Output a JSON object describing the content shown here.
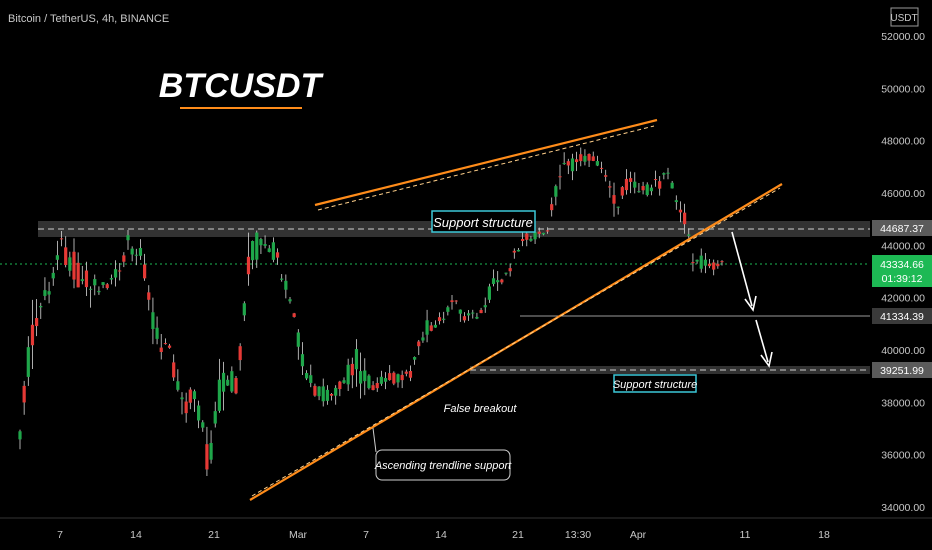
{
  "header": {
    "symbol_info": "Bitcoin / TetherUS, 4h, BINANCE",
    "currency": "USDT"
  },
  "title": "BTCUSDT",
  "price_axis": {
    "ticks": [
      "52000.00",
      "50000.00",
      "48000.00",
      "46000.00",
      "44000.00",
      "42000.00",
      "40000.00",
      "38000.00",
      "36000.00",
      "34000.00"
    ]
  },
  "time_axis": {
    "ticks": [
      "7",
      "14",
      "21",
      "Mar",
      "7",
      "14",
      "21",
      "13:30",
      "Apr",
      "11",
      "18"
    ]
  },
  "price_labels": {
    "resistance_level": "44687.37",
    "current_price": "43334.66",
    "countdown": "01:39:12",
    "target_1": "41334.39",
    "target_2": "39251.99"
  },
  "annotations": {
    "support_top": "Support structure",
    "support_bottom": "Support structure",
    "false_breakout": "False breakout",
    "trendline": "Ascending trendline support"
  },
  "colors": {
    "background": "#000000",
    "bull": "#26a69a",
    "bull_candle": "#1fa64a",
    "bear_candle": "#e53935",
    "trendline": "#ff8c1a",
    "current_price": "#1db954",
    "zone_border": "#3cc8d8",
    "axis_text": "#c8c8c8"
  },
  "chart_data": {
    "type": "candlestick",
    "interval": "4h",
    "ylim": [
      34000,
      52000
    ],
    "series": [
      {
        "name": "BTCUSDT",
        "candles": [
          {
            "x": "Feb 03",
            "o": 37300,
            "h": 38000,
            "l": 36200,
            "c": 36900
          },
          {
            "x": "Feb 04",
            "o": 36900,
            "h": 41600,
            "l": 36700,
            "c": 41200
          },
          {
            "x": "Feb 06",
            "o": 41200,
            "h": 42700,
            "l": 40800,
            "c": 42100
          },
          {
            "x": "Feb 07",
            "o": 42100,
            "h": 45000,
            "l": 41900,
            "c": 43800
          },
          {
            "x": "Feb 08",
            "o": 43800,
            "h": 45400,
            "l": 42200,
            "c": 43200
          },
          {
            "x": "Feb 10",
            "o": 43200,
            "h": 45900,
            "l": 42000,
            "c": 42400
          },
          {
            "x": "Feb 12",
            "o": 42400,
            "h": 43100,
            "l": 41800,
            "c": 42300
          },
          {
            "x": "Feb 14",
            "o": 42300,
            "h": 43200,
            "l": 41600,
            "c": 42700
          },
          {
            "x": "Feb 15",
            "o": 42700,
            "h": 44800,
            "l": 42500,
            "c": 44200
          },
          {
            "x": "Feb 16",
            "o": 44200,
            "h": 44500,
            "l": 42900,
            "c": 43600
          },
          {
            "x": "Feb 17",
            "o": 43600,
            "h": 43800,
            "l": 40000,
            "c": 40600
          },
          {
            "x": "Feb 19",
            "o": 40600,
            "h": 40900,
            "l": 39600,
            "c": 40100
          },
          {
            "x": "Feb 21",
            "o": 40100,
            "h": 40300,
            "l": 36900,
            "c": 37800
          },
          {
            "x": "Feb 22",
            "o": 37800,
            "h": 39200,
            "l": 36600,
            "c": 38200
          },
          {
            "x": "Feb 24",
            "o": 38200,
            "h": 38400,
            "l": 34300,
            "c": 35600
          },
          {
            "x": "Feb 25",
            "o": 35600,
            "h": 39700,
            "l": 35300,
            "c": 39000
          },
          {
            "x": "Feb 27",
            "o": 39000,
            "h": 39900,
            "l": 37800,
            "c": 38700
          },
          {
            "x": "Feb 28",
            "o": 38700,
            "h": 43800,
            "l": 38100,
            "c": 43200
          },
          {
            "x": "Mar 01",
            "o": 43200,
            "h": 45400,
            "l": 42700,
            "c": 44400
          },
          {
            "x": "Mar 02",
            "o": 44400,
            "h": 45100,
            "l": 42900,
            "c": 43600
          },
          {
            "x": "Mar 03",
            "o": 43600,
            "h": 43900,
            "l": 41600,
            "c": 42200
          },
          {
            "x": "Mar 04",
            "o": 42200,
            "h": 42400,
            "l": 38600,
            "c": 39300
          },
          {
            "x": "Mar 06",
            "o": 39300,
            "h": 39600,
            "l": 37700,
            "c": 38500
          },
          {
            "x": "Mar 07",
            "o": 38500,
            "h": 39300,
            "l": 37300,
            "c": 38200
          },
          {
            "x": "Mar 08",
            "o": 38200,
            "h": 39300,
            "l": 37900,
            "c": 38900
          },
          {
            "x": "Mar 10",
            "o": 38900,
            "h": 42400,
            "l": 38100,
            "c": 39400
          },
          {
            "x": "Mar 11",
            "o": 39400,
            "h": 39700,
            "l": 38300,
            "c": 38700
          },
          {
            "x": "Mar 13",
            "o": 38700,
            "h": 39300,
            "l": 37900,
            "c": 38800
          },
          {
            "x": "Mar 14",
            "o": 38800,
            "h": 39500,
            "l": 37600,
            "c": 39000
          },
          {
            "x": "Mar 15",
            "o": 39000,
            "h": 39400,
            "l": 38400,
            "c": 39100
          },
          {
            "x": "Mar 16",
            "o": 39100,
            "h": 41200,
            "l": 38900,
            "c": 40900
          },
          {
            "x": "Mar 17",
            "o": 40900,
            "h": 41600,
            "l": 40400,
            "c": 41000
          },
          {
            "x": "Mar 18",
            "o": 41000,
            "h": 42300,
            "l": 40800,
            "c": 41900
          },
          {
            "x": "Mar 20",
            "o": 41900,
            "h": 42200,
            "l": 40700,
            "c": 41200
          },
          {
            "x": "Mar 21",
            "o": 41200,
            "h": 41600,
            "l": 40900,
            "c": 41300
          },
          {
            "x": "Mar 22",
            "o": 41300,
            "h": 43200,
            "l": 41000,
            "c": 42500
          },
          {
            "x": "Mar 23",
            "o": 42500,
            "h": 43000,
            "l": 42100,
            "c": 42800
          },
          {
            "x": "Mar 24",
            "o": 42800,
            "h": 44300,
            "l": 42500,
            "c": 44000
          },
          {
            "x": "Mar 25",
            "o": 44000,
            "h": 44800,
            "l": 43700,
            "c": 44400
          },
          {
            "x": "Mar 26",
            "o": 44400,
            "h": 44900,
            "l": 44100,
            "c": 44500
          },
          {
            "x": "Mar 27",
            "o": 44500,
            "h": 46900,
            "l": 44300,
            "c": 46700
          },
          {
            "x": "Mar 28",
            "o": 46700,
            "h": 48200,
            "l": 46300,
            "c": 47200
          },
          {
            "x": "Mar 29",
            "o": 47200,
            "h": 48100,
            "l": 46800,
            "c": 47400
          },
          {
            "x": "Mar 30",
            "o": 47400,
            "h": 47700,
            "l": 46600,
            "c": 47100
          },
          {
            "x": "Mar 31",
            "o": 47100,
            "h": 47600,
            "l": 45100,
            "c": 45600
          },
          {
            "x": "Apr 01",
            "o": 45600,
            "h": 46700,
            "l": 44200,
            "c": 46300
          },
          {
            "x": "Apr 02",
            "o": 46300,
            "h": 47000,
            "l": 45600,
            "c": 46000
          },
          {
            "x": "Apr 03",
            "o": 46000,
            "h": 47400,
            "l": 45700,
            "c": 46400
          },
          {
            "x": "Apr 04",
            "o": 46400,
            "h": 46900,
            "l": 45200,
            "c": 46500
          },
          {
            "x": "Apr 05",
            "o": 46500,
            "h": 47200,
            "l": 45100,
            "c": 45400
          },
          {
            "x": "Apr 06",
            "o": 45400,
            "h": 45600,
            "l": 43200,
            "c": 43400
          },
          {
            "x": "Apr 07",
            "o": 43400,
            "h": 43900,
            "l": 42800,
            "c": 43200
          },
          {
            "x": "Apr 08",
            "o": 43200,
            "h": 43700,
            "l": 42700,
            "c": 43334.66
          }
        ]
      }
    ],
    "levels": [
      44687.37,
      41334.39,
      39251.99
    ],
    "current_price": 43334.66
  }
}
